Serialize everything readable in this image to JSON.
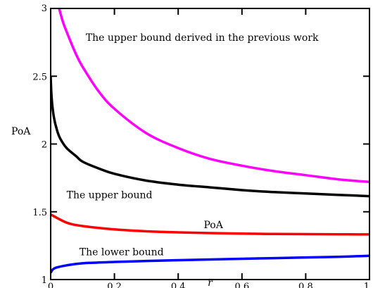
{
  "chart_data": {
    "type": "line",
    "title": "",
    "xlabel": "r",
    "ylabel": "PoA",
    "xlim": [
      0,
      1
    ],
    "ylim": [
      1,
      3
    ],
    "xticks": [
      "0",
      "0.2",
      "0.4",
      "0.6",
      "0.8",
      "1"
    ],
    "yticks": [
      "1",
      "1.5",
      "2",
      "2.5",
      "3"
    ],
    "grid": false,
    "series": [
      {
        "color": "#ff00ff",
        "x": [
          0.01,
          0.015,
          0.02,
          0.03,
          0.04,
          0.06,
          0.08,
          0.1,
          0.15,
          0.2,
          0.3,
          0.4,
          0.5,
          0.6,
          0.7,
          0.8,
          0.9,
          1.0
        ],
        "y": [
          3.2,
          3.12,
          3.06,
          2.97,
          2.89,
          2.77,
          2.66,
          2.57,
          2.39,
          2.26,
          2.08,
          1.97,
          1.89,
          1.84,
          1.8,
          1.77,
          1.74,
          1.72
        ]
      },
      {
        "color": "#000000",
        "x": [
          0.0,
          0.003,
          0.01,
          0.02,
          0.03,
          0.05,
          0.08,
          0.1,
          0.15,
          0.2,
          0.3,
          0.4,
          0.5,
          0.6,
          0.7,
          0.8,
          0.9,
          1.0
        ],
        "y": [
          2.5,
          2.34,
          2.2,
          2.1,
          2.04,
          1.97,
          1.91,
          1.87,
          1.82,
          1.78,
          1.73,
          1.7,
          1.68,
          1.66,
          1.645,
          1.635,
          1.625,
          1.615
        ]
      },
      {
        "color": "#ff0000",
        "x": [
          0.0,
          0.05,
          0.1,
          0.2,
          0.3,
          0.4,
          0.5,
          0.6,
          0.7,
          0.8,
          0.9,
          1.0
        ],
        "y": [
          1.48,
          1.42,
          1.395,
          1.37,
          1.356,
          1.348,
          1.343,
          1.339,
          1.336,
          1.335,
          1.334,
          1.333
        ]
      },
      {
        "color": "#0000ff",
        "x": [
          0.0,
          0.005,
          0.01,
          0.02,
          0.05,
          0.1,
          0.2,
          0.3,
          0.4,
          0.5,
          0.6,
          0.7,
          0.8,
          0.9,
          1.0
        ],
        "y": [
          1.05,
          1.07,
          1.08,
          1.09,
          1.105,
          1.12,
          1.13,
          1.137,
          1.143,
          1.148,
          1.153,
          1.158,
          1.163,
          1.168,
          1.175
        ]
      }
    ],
    "annotations": [
      {
        "text": "The upper bound derived in the previous work",
        "x": 0.11,
        "y": 2.76
      },
      {
        "text": "The upper bound",
        "x": 0.05,
        "y": 1.6
      },
      {
        "text": "PoA",
        "x": 0.48,
        "y": 1.38
      },
      {
        "text": "The lower bound",
        "x": 0.09,
        "y": 1.18
      }
    ]
  }
}
